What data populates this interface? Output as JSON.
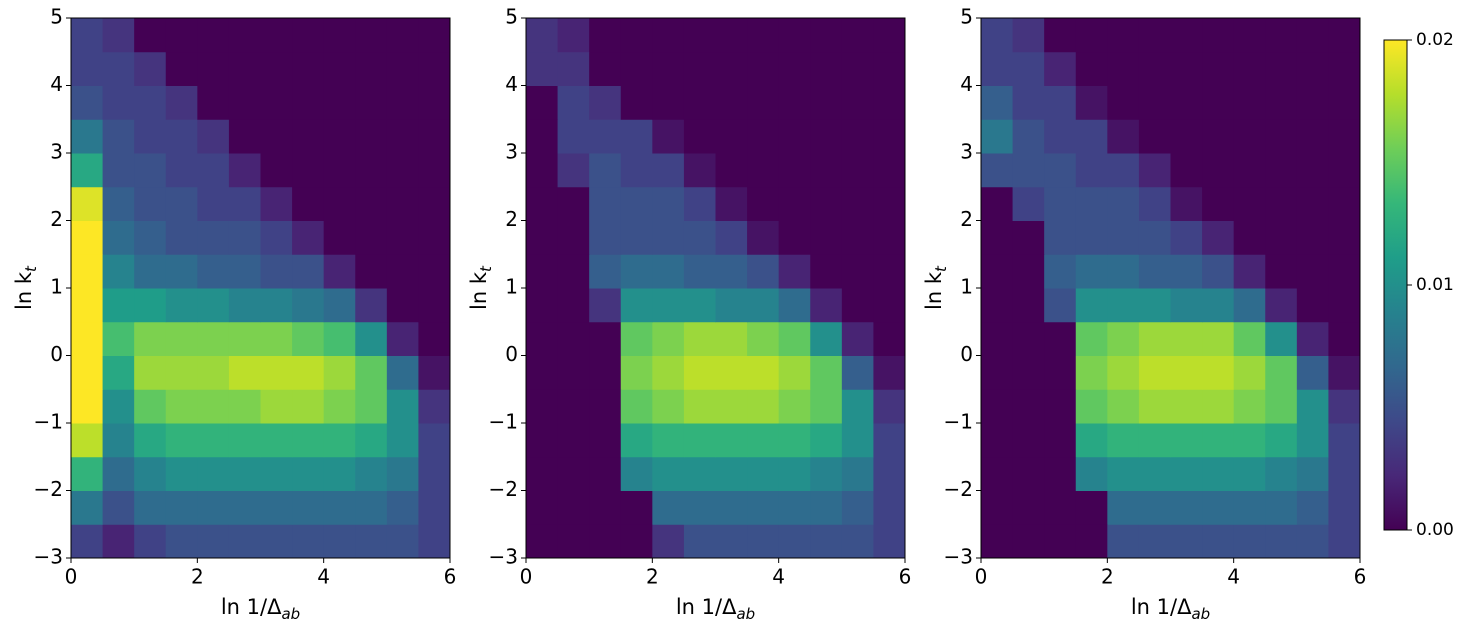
{
  "chart_data": [
    {
      "type": "heatmap",
      "colormap": "viridis",
      "clim": [
        0,
        0.02
      ],
      "xbins": [
        0,
        0.5,
        1,
        1.5,
        2,
        2.5,
        3,
        3.5,
        4,
        4.5,
        5,
        5.5,
        6
      ],
      "ybins": [
        -3,
        -2.5,
        -2,
        -1.5,
        -1,
        -0.5,
        0,
        0.5,
        1,
        1.5,
        2,
        2.5,
        3,
        3.5,
        4,
        4.5,
        5
      ],
      "z": [
        [
          0.004,
          0.002,
          0.004,
          0.005,
          0.005,
          0.005,
          0.005,
          0.005,
          0.005,
          0.005,
          0.005,
          0.004
        ],
        [
          0.008,
          0.005,
          0.007,
          0.007,
          0.007,
          0.007,
          0.007,
          0.007,
          0.007,
          0.007,
          0.006,
          0.004
        ],
        [
          0.013,
          0.007,
          0.009,
          0.01,
          0.01,
          0.01,
          0.01,
          0.01,
          0.01,
          0.009,
          0.008,
          0.004
        ],
        [
          0.018,
          0.009,
          0.012,
          0.013,
          0.013,
          0.013,
          0.013,
          0.013,
          0.013,
          0.012,
          0.01,
          0.004
        ],
        [
          0.02,
          0.01,
          0.015,
          0.016,
          0.016,
          0.016,
          0.017,
          0.017,
          0.016,
          0.015,
          0.01,
          0.003
        ],
        [
          0.02,
          0.012,
          0.017,
          0.017,
          0.017,
          0.018,
          0.018,
          0.018,
          0.017,
          0.015,
          0.007,
          0.001
        ],
        [
          0.02,
          0.014,
          0.016,
          0.016,
          0.016,
          0.016,
          0.016,
          0.015,
          0.014,
          0.01,
          0.002,
          0
        ],
        [
          0.02,
          0.011,
          0.011,
          0.01,
          0.01,
          0.009,
          0.009,
          0.008,
          0.007,
          0.003,
          0,
          0
        ],
        [
          0.02,
          0.009,
          0.007,
          0.007,
          0.006,
          0.006,
          0.005,
          0.005,
          0.002,
          0,
          0,
          0
        ],
        [
          0.02,
          0.007,
          0.006,
          0.005,
          0.005,
          0.005,
          0.004,
          0.002,
          0,
          0,
          0,
          0
        ],
        [
          0.019,
          0.006,
          0.005,
          0.005,
          0.004,
          0.004,
          0.002,
          0,
          0,
          0,
          0,
          0
        ],
        [
          0.012,
          0.005,
          0.005,
          0.004,
          0.004,
          0.002,
          0,
          0,
          0,
          0,
          0,
          0
        ],
        [
          0.008,
          0.005,
          0.004,
          0.004,
          0.003,
          0,
          0,
          0,
          0,
          0,
          0,
          0
        ],
        [
          0.005,
          0.004,
          0.004,
          0.003,
          0,
          0,
          0,
          0,
          0,
          0,
          0,
          0
        ],
        [
          0.004,
          0.004,
          0.003,
          0,
          0,
          0,
          0,
          0,
          0,
          0,
          0,
          0
        ],
        [
          0.004,
          0.003,
          0,
          0,
          0,
          0,
          0,
          0,
          0,
          0,
          0,
          0
        ]
      ],
      "xlim": [
        0,
        6
      ],
      "ylim": [
        -3,
        5
      ],
      "xticks": [
        0,
        2,
        4,
        6
      ],
      "yticks": [
        {
          "value": -3,
          "label": "−3"
        },
        {
          "value": -2,
          "label": "−2"
        },
        {
          "value": -1,
          "label": "−1"
        },
        0,
        1,
        2,
        3,
        4,
        5
      ],
      "xlabel": "ln 1/Δ",
      "xlabel_sub": "ab",
      "ylabel": "ln k",
      "ylabel_sub": "t"
    },
    {
      "type": "heatmap",
      "colormap": "viridis",
      "clim": [
        0,
        0.02
      ],
      "xbins": [
        0,
        0.5,
        1,
        1.5,
        2,
        2.5,
        3,
        3.5,
        4,
        4.5,
        5,
        5.5,
        6
      ],
      "ybins": [
        -3,
        -2.5,
        -2,
        -1.5,
        -1,
        -0.5,
        0,
        0.5,
        1,
        1.5,
        2,
        2.5,
        3,
        3.5,
        4,
        4.5,
        5
      ],
      "z": [
        [
          0,
          0,
          0,
          0,
          0.003,
          0.005,
          0.005,
          0.005,
          0.005,
          0.005,
          0.005,
          0.004
        ],
        [
          0,
          0,
          0,
          0,
          0.007,
          0.007,
          0.007,
          0.007,
          0.007,
          0.007,
          0.006,
          0.004
        ],
        [
          0,
          0,
          0,
          0.009,
          0.01,
          0.01,
          0.01,
          0.01,
          0.01,
          0.009,
          0.008,
          0.004
        ],
        [
          0,
          0,
          0,
          0.012,
          0.013,
          0.013,
          0.013,
          0.013,
          0.013,
          0.012,
          0.01,
          0.004
        ],
        [
          0,
          0,
          0,
          0.015,
          0.016,
          0.017,
          0.017,
          0.017,
          0.016,
          0.015,
          0.01,
          0.003
        ],
        [
          0,
          0,
          0,
          0.016,
          0.017,
          0.018,
          0.018,
          0.018,
          0.017,
          0.015,
          0.006,
          0.001
        ],
        [
          0,
          0,
          0,
          0.015,
          0.016,
          0.017,
          0.017,
          0.016,
          0.015,
          0.01,
          0.002,
          0
        ],
        [
          0,
          0,
          0.003,
          0.01,
          0.01,
          0.01,
          0.009,
          0.009,
          0.007,
          0.002,
          0,
          0
        ],
        [
          0,
          0,
          0.006,
          0.007,
          0.007,
          0.006,
          0.006,
          0.005,
          0.002,
          0,
          0,
          0
        ],
        [
          0,
          0,
          0.005,
          0.005,
          0.005,
          0.005,
          0.004,
          0.001,
          0,
          0,
          0,
          0
        ],
        [
          0,
          0,
          0.005,
          0.005,
          0.005,
          0.004,
          0.001,
          0,
          0,
          0,
          0,
          0
        ],
        [
          0,
          0.003,
          0.005,
          0.004,
          0.004,
          0.001,
          0,
          0,
          0,
          0,
          0,
          0
        ],
        [
          0,
          0.004,
          0.004,
          0.004,
          0.001,
          0,
          0,
          0,
          0,
          0,
          0,
          0
        ],
        [
          0,
          0.004,
          0.003,
          0,
          0,
          0,
          0,
          0,
          0,
          0,
          0,
          0
        ],
        [
          0.003,
          0.003,
          0,
          0,
          0,
          0,
          0,
          0,
          0,
          0,
          0,
          0
        ],
        [
          0.003,
          0.002,
          0,
          0,
          0,
          0,
          0,
          0,
          0,
          0,
          0,
          0
        ]
      ],
      "xlim": [
        0,
        6
      ],
      "ylim": [
        -3,
        5
      ],
      "xticks": [
        0,
        2,
        4,
        6
      ],
      "yticks": [
        {
          "value": -3,
          "label": "−3"
        },
        {
          "value": -2,
          "label": "−2"
        },
        {
          "value": -1,
          "label": "−1"
        },
        0,
        1,
        2,
        3,
        4,
        5
      ],
      "xlabel": "ln 1/Δ",
      "xlabel_sub": "ab",
      "ylabel": "ln k",
      "ylabel_sub": "t"
    },
    {
      "type": "heatmap",
      "colormap": "viridis",
      "clim": [
        0,
        0.02
      ],
      "xbins": [
        0,
        0.5,
        1,
        1.5,
        2,
        2.5,
        3,
        3.5,
        4,
        4.5,
        5,
        5.5,
        6
      ],
      "ybins": [
        -3,
        -2.5,
        -2,
        -1.5,
        -1,
        -0.5,
        0,
        0.5,
        1,
        1.5,
        2,
        2.5,
        3,
        3.5,
        4,
        4.5,
        5
      ],
      "z": [
        [
          0,
          0,
          0,
          0,
          0.005,
          0.005,
          0.005,
          0.005,
          0.005,
          0.005,
          0.005,
          0.004
        ],
        [
          0,
          0,
          0,
          0,
          0.007,
          0.007,
          0.007,
          0.007,
          0.007,
          0.007,
          0.006,
          0.004
        ],
        [
          0,
          0,
          0,
          0.009,
          0.01,
          0.01,
          0.01,
          0.01,
          0.01,
          0.009,
          0.008,
          0.004
        ],
        [
          0,
          0,
          0,
          0.012,
          0.013,
          0.013,
          0.013,
          0.013,
          0.013,
          0.012,
          0.01,
          0.004
        ],
        [
          0,
          0,
          0,
          0.015,
          0.016,
          0.017,
          0.017,
          0.017,
          0.016,
          0.015,
          0.01,
          0.003
        ],
        [
          0,
          0,
          0,
          0.016,
          0.017,
          0.018,
          0.018,
          0.018,
          0.017,
          0.015,
          0.006,
          0.001
        ],
        [
          0,
          0,
          0,
          0.015,
          0.016,
          0.017,
          0.017,
          0.017,
          0.015,
          0.01,
          0.002,
          0
        ],
        [
          0,
          0,
          0.005,
          0.01,
          0.01,
          0.01,
          0.009,
          0.009,
          0.007,
          0.002,
          0,
          0
        ],
        [
          0,
          0,
          0.006,
          0.007,
          0.007,
          0.006,
          0.006,
          0.005,
          0.002,
          0,
          0,
          0
        ],
        [
          0,
          0,
          0.005,
          0.005,
          0.005,
          0.005,
          0.004,
          0.002,
          0,
          0,
          0,
          0
        ],
        [
          0,
          0.004,
          0.005,
          0.005,
          0.005,
          0.004,
          0.001,
          0,
          0,
          0,
          0,
          0
        ],
        [
          0.005,
          0.005,
          0.005,
          0.004,
          0.004,
          0.002,
          0,
          0,
          0,
          0,
          0,
          0
        ],
        [
          0.008,
          0.005,
          0.004,
          0.004,
          0.001,
          0,
          0,
          0,
          0,
          0,
          0,
          0
        ],
        [
          0.006,
          0.004,
          0.004,
          0.001,
          0,
          0,
          0,
          0,
          0,
          0,
          0,
          0
        ],
        [
          0.004,
          0.004,
          0.002,
          0,
          0,
          0,
          0,
          0,
          0,
          0,
          0,
          0
        ],
        [
          0.004,
          0.003,
          0,
          0,
          0,
          0,
          0,
          0,
          0,
          0,
          0,
          0
        ]
      ],
      "xlim": [
        0,
        6
      ],
      "ylim": [
        -3,
        5
      ],
      "xticks": [
        0,
        2,
        4,
        6
      ],
      "yticks": [
        {
          "value": -3,
          "label": "−3"
        },
        {
          "value": -2,
          "label": "−2"
        },
        {
          "value": -1,
          "label": "−1"
        },
        0,
        1,
        2,
        3,
        4,
        5
      ],
      "xlabel": "ln 1/Δ",
      "xlabel_sub": "ab",
      "ylabel": "ln k",
      "ylabel_sub": "t",
      "colorbar": true,
      "cticks": [
        {
          "value": 0,
          "label": "0.00"
        },
        0.01,
        0.02
      ]
    }
  ]
}
